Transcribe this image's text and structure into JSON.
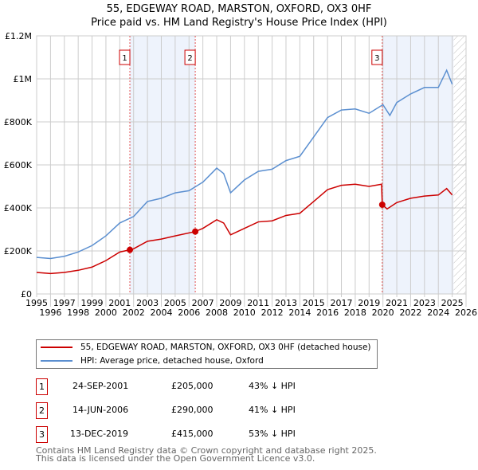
{
  "chart_data": {
    "type": "line",
    "title": "55, EDGEWAY ROAD, MARSTON, OXFORD, OX3 0HF",
    "subtitle": "Price paid vs. HM Land Registry's House Price Index (HPI)",
    "xlim": [
      1995,
      2026
    ],
    "ylim": [
      0,
      1200000
    ],
    "x_ticks": [
      "1995",
      "1996",
      "1997",
      "1998",
      "1999",
      "2000",
      "2001",
      "2002",
      "2003",
      "2004",
      "2005",
      "2006",
      "2007",
      "2008",
      "2009",
      "2010",
      "2011",
      "2012",
      "2013",
      "2014",
      "2015",
      "2016",
      "2017",
      "2018",
      "2019",
      "2020",
      "2021",
      "2022",
      "2023",
      "2024",
      "2025",
      "2026"
    ],
    "y_ticks": [
      {
        "v": 0,
        "label": "£0"
      },
      {
        "v": 200000,
        "label": "£200K"
      },
      {
        "v": 400000,
        "label": "£400K"
      },
      {
        "v": 600000,
        "label": "£600K"
      },
      {
        "v": 800000,
        "label": "£800K"
      },
      {
        "v": 1000000,
        "label": "£1M"
      },
      {
        "v": 1200000,
        "label": "£1.2M"
      }
    ],
    "grid": true,
    "series": [
      {
        "name": "55, EDGEWAY ROAD, MARSTON, OXFORD, OX3 0HF (detached house)",
        "color": "#cc0000",
        "x": [
          1995,
          1996,
          1997,
          1998,
          1999,
          2000,
          2001,
          2001.73,
          2002,
          2003,
          2004,
          2005,
          2006.45,
          2007,
          2008,
          2008.5,
          2009,
          2010,
          2011,
          2012,
          2013,
          2014,
          2015,
          2016,
          2017,
          2018,
          2019,
          2019.9,
          2019.95,
          2020.3,
          2021,
          2022,
          2023,
          2024,
          2024.6,
          2025
        ],
        "y": [
          100000,
          95000,
          100000,
          110000,
          125000,
          155000,
          195000,
          205000,
          210000,
          245000,
          255000,
          270000,
          290000,
          305000,
          345000,
          330000,
          275000,
          305000,
          335000,
          340000,
          365000,
          375000,
          430000,
          485000,
          505000,
          510000,
          500000,
          510000,
          415000,
          395000,
          425000,
          445000,
          455000,
          460000,
          490000,
          460000
        ]
      },
      {
        "name": "HPI: Average price, detached house, Oxford",
        "color": "#5b8fd0",
        "x": [
          1995,
          1996,
          1997,
          1998,
          1999,
          2000,
          2001,
          2002,
          2003,
          2004,
          2005,
          2006,
          2007,
          2008,
          2008.5,
          2009,
          2010,
          2011,
          2012,
          2013,
          2014,
          2015,
          2016,
          2017,
          2018,
          2019,
          2020,
          2020.5,
          2021,
          2022,
          2023,
          2024,
          2024.6,
          2025
        ],
        "y": [
          170000,
          165000,
          175000,
          195000,
          225000,
          270000,
          330000,
          360000,
          430000,
          445000,
          470000,
          480000,
          520000,
          585000,
          560000,
          470000,
          530000,
          570000,
          580000,
          620000,
          640000,
          730000,
          820000,
          855000,
          860000,
          840000,
          880000,
          830000,
          890000,
          930000,
          960000,
          960000,
          1040000,
          975000
        ]
      }
    ],
    "sales": [
      {
        "n": "1",
        "x": 2001.73,
        "date": "24-SEP-2001",
        "price": "£205,000",
        "price_v": 205000,
        "hpi": "43% ↓ HPI"
      },
      {
        "n": "2",
        "x": 2006.45,
        "date": "14-JUN-2006",
        "price": "£290,000",
        "price_v": 290000,
        "hpi": "41% ↓ HPI"
      },
      {
        "n": "3",
        "x": 2019.95,
        "date": "13-DEC-2019",
        "price": "£415,000",
        "price_v": 415000,
        "hpi": "53% ↓ HPI"
      }
    ],
    "forecast_from": 2025.1,
    "shaded": [
      [
        2001.73,
        2006.45
      ],
      [
        2019.95,
        2025.1
      ]
    ]
  },
  "legend": {
    "items": [
      "55, EDGEWAY ROAD, MARSTON, OXFORD, OX3 0HF (detached house)",
      "HPI: Average price, detached house, Oxford"
    ]
  },
  "footer": [
    "Contains HM Land Registry data © Crown copyright and database right 2025.",
    "This data is licensed under the Open Government Licence v3.0."
  ]
}
